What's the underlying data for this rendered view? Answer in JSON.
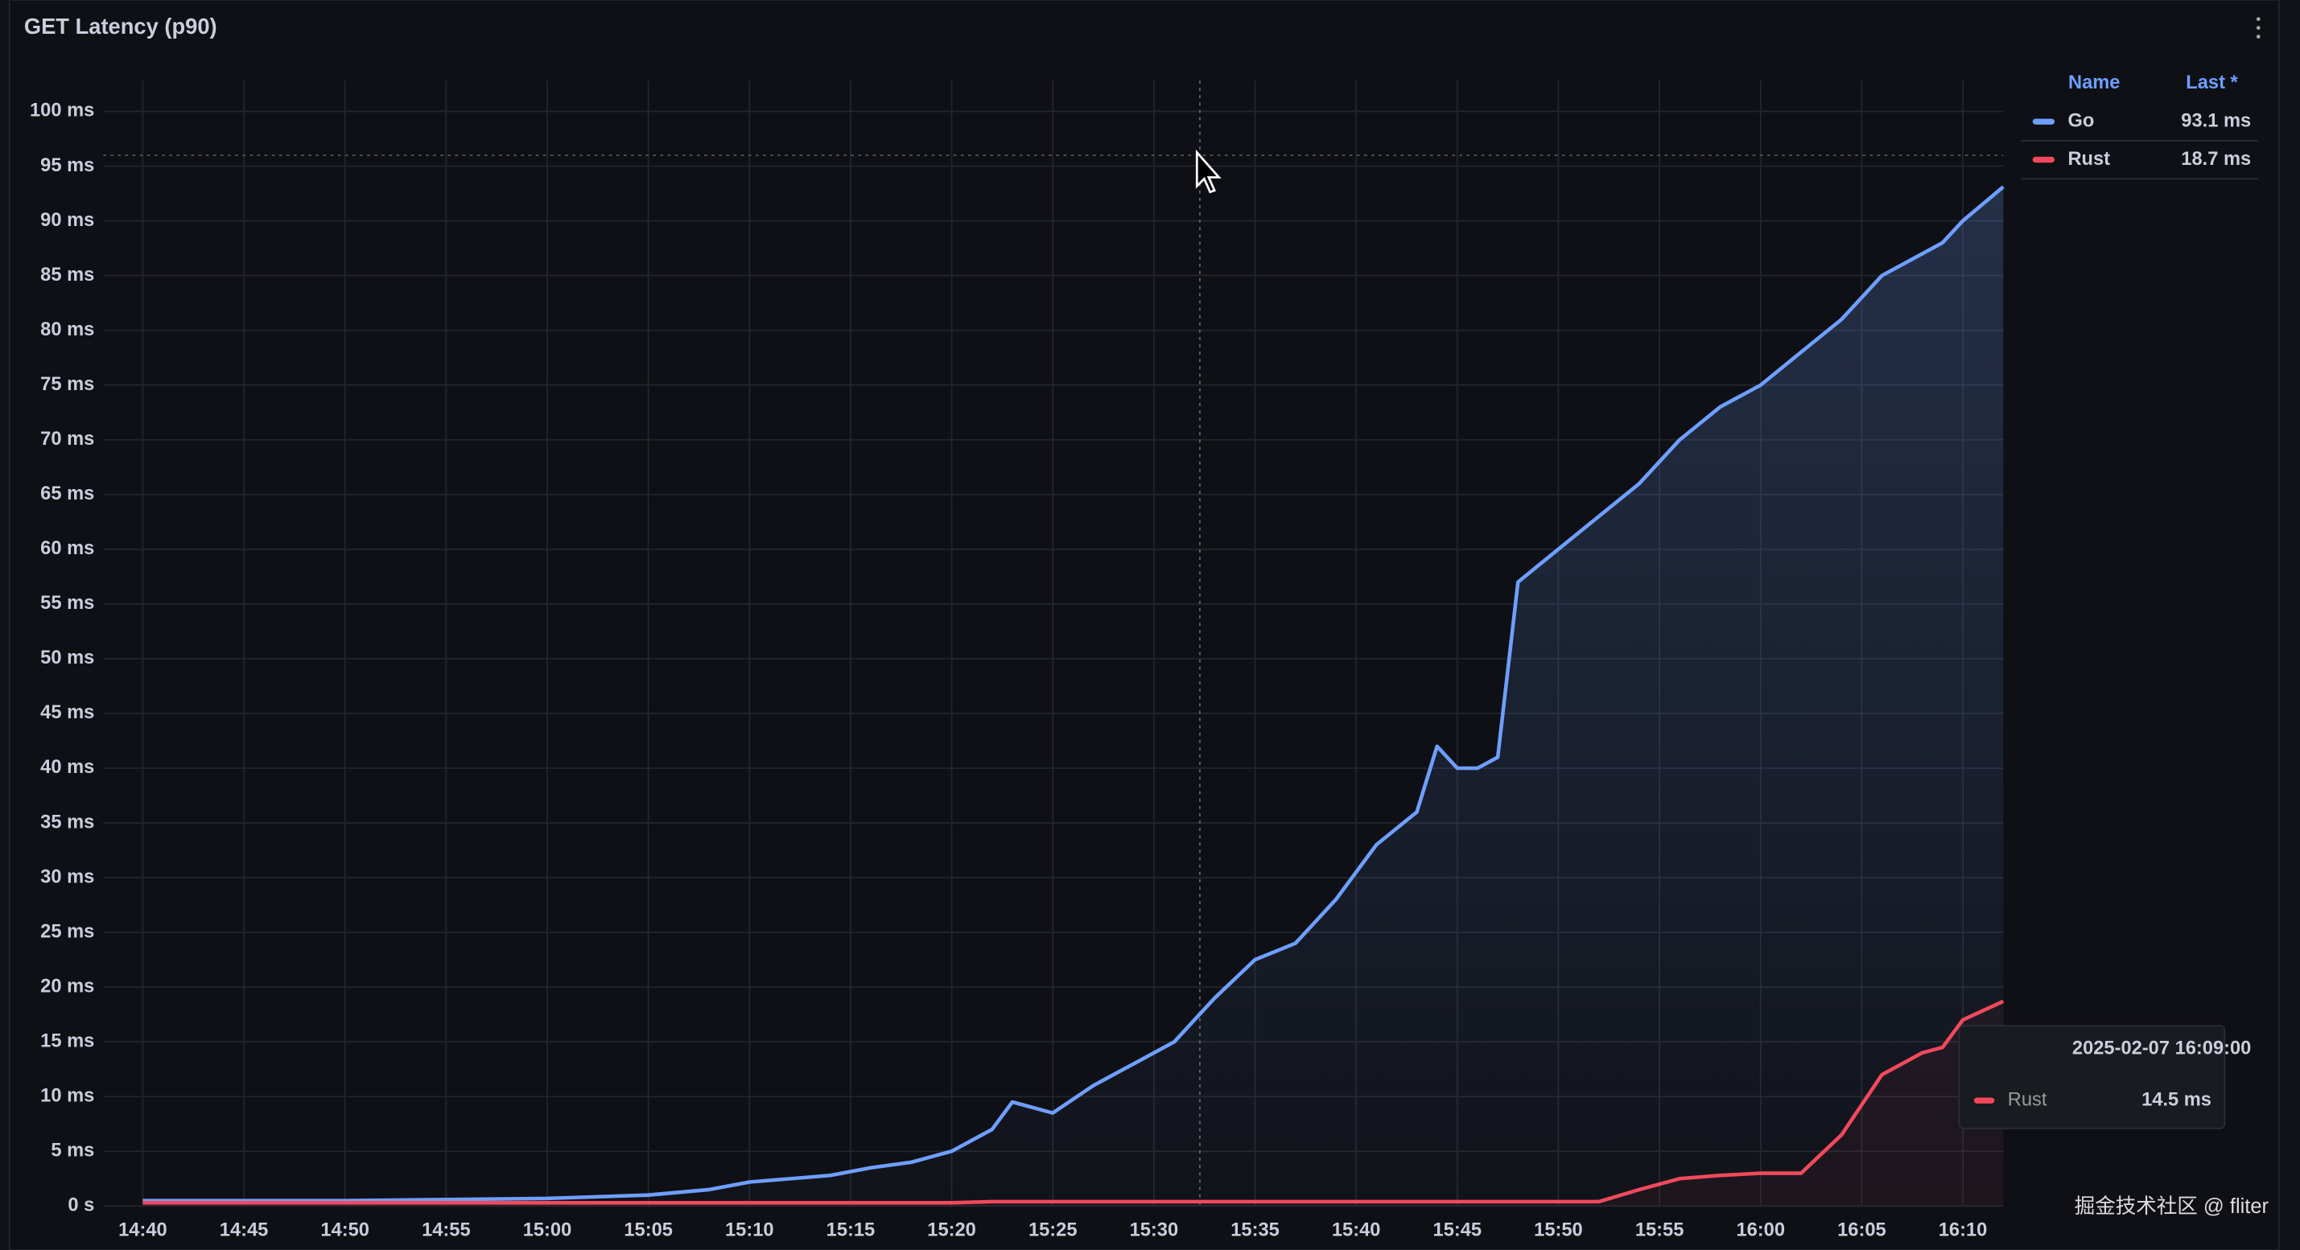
{
  "chart_data": {
    "type": "line",
    "title": "GET Latency (p90)",
    "x": [
      "14:40",
      "14:50",
      "15:00",
      "15:05",
      "15:08",
      "15:10",
      "15:14",
      "15:16",
      "15:18",
      "15:20",
      "15:22",
      "15:23",
      "15:25",
      "15:27",
      "15:29",
      "15:31",
      "15:32",
      "15:33",
      "15:35",
      "15:37",
      "15:39",
      "15:41",
      "15:43",
      "15:44",
      "15:45",
      "15:46",
      "15:47",
      "15:48",
      "15:50",
      "15:52",
      "15:54",
      "15:56",
      "15:58",
      "16:00",
      "16:02",
      "16:04",
      "16:06",
      "16:08",
      "16:09",
      "16:10",
      "16:12"
    ],
    "series": [
      {
        "name": "Go",
        "color": "#6e9fff",
        "last": "93.1 ms",
        "values": [
          0.5,
          0.5,
          0.7,
          1,
          1.5,
          2.2,
          2.8,
          3.5,
          4,
          5,
          7,
          9.5,
          8.5,
          11,
          13,
          15,
          17,
          19,
          22.5,
          24,
          28,
          33,
          36,
          42,
          40,
          40,
          41,
          57,
          60,
          63,
          66,
          70,
          73,
          75,
          78,
          81,
          85,
          87,
          88,
          90,
          93.1
        ]
      },
      {
        "name": "Rust",
        "color": "#f2495c",
        "last": "18.7 ms",
        "values": [
          0.3,
          0.3,
          0.3,
          0.3,
          0.3,
          0.3,
          0.3,
          0.3,
          0.3,
          0.3,
          0.4,
          0.4,
          0.4,
          0.4,
          0.4,
          0.4,
          0.4,
          0.4,
          0.4,
          0.4,
          0.4,
          0.4,
          0.4,
          0.4,
          0.4,
          0.4,
          0.4,
          0.4,
          0.4,
          0.4,
          1.5,
          2.5,
          2.8,
          3,
          3,
          6.5,
          12,
          14,
          14.5,
          17,
          18.7
        ]
      }
    ],
    "xlim": [
      "14:40",
      "16:12"
    ],
    "xticks": [
      "14:40",
      "14:45",
      "14:50",
      "14:55",
      "15:00",
      "15:05",
      "15:10",
      "15:15",
      "15:20",
      "15:25",
      "15:30",
      "15:35",
      "15:40",
      "15:45",
      "15:50",
      "15:55",
      "16:00",
      "16:05",
      "16:10"
    ],
    "ylim": [
      0,
      100
    ],
    "yticks": [
      {
        "value": 0,
        "label": "0 s"
      },
      {
        "value": 5,
        "label": "5 ms"
      },
      {
        "value": 10,
        "label": "10 ms"
      },
      {
        "value": 15,
        "label": "15 ms"
      },
      {
        "value": 20,
        "label": "20 ms"
      },
      {
        "value": 25,
        "label": "25 ms"
      },
      {
        "value": 30,
        "label": "30 ms"
      },
      {
        "value": 35,
        "label": "35 ms"
      },
      {
        "value": 40,
        "label": "40 ms"
      },
      {
        "value": 45,
        "label": "45 ms"
      },
      {
        "value": 50,
        "label": "50 ms"
      },
      {
        "value": 55,
        "label": "55 ms"
      },
      {
        "value": 60,
        "label": "60 ms"
      },
      {
        "value": 65,
        "label": "65 ms"
      },
      {
        "value": 70,
        "label": "70 ms"
      },
      {
        "value": 75,
        "label": "75 ms"
      },
      {
        "value": 80,
        "label": "80 ms"
      },
      {
        "value": 85,
        "label": "85 ms"
      },
      {
        "value": 90,
        "label": "90 ms"
      },
      {
        "value": 95,
        "label": "95 ms"
      },
      {
        "value": 100,
        "label": "100 ms"
      }
    ],
    "grid": true,
    "legend_header": [
      "Name",
      "Last *"
    ],
    "tooltip": {
      "time": "2025-02-07 16:09:00",
      "series": "Rust",
      "value": "14.5 ms"
    }
  },
  "watermark": "掘金技术社区 @ fliter"
}
